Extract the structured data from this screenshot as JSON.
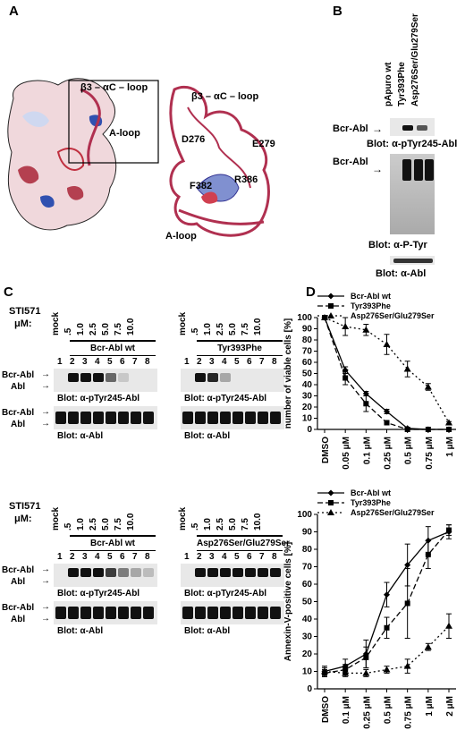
{
  "panelA": {
    "label": "A",
    "box_label": "β3 – αC – loop",
    "aloop_label": "A-loop",
    "right_loop_label": "β3 – αC – loop",
    "residues": [
      "D276",
      "E279",
      "F382",
      "R386"
    ],
    "right_aloop": "A-loop"
  },
  "panelB": {
    "label": "B",
    "lanes": [
      "pApuro wt",
      "Tyr393Phe",
      "Asp276Ser/Glu279Ser"
    ],
    "blots": [
      {
        "band": "Bcr-Abl",
        "caption": "Blot: α-pTyr245-Abl"
      },
      {
        "band": "Bcr-Abl",
        "caption": "Blot: α-P-Tyr"
      },
      {
        "band": "",
        "caption": "Blot: α-Abl"
      }
    ]
  },
  "panelC": {
    "label": "C",
    "treatment": "STI571",
    "unit": "μM:",
    "doses": [
      "mock",
      ".5",
      "1.0",
      "2.5",
      "5.0",
      "7.5",
      "10.0"
    ],
    "lane_numbers": [
      "1",
      "2",
      "3",
      "4",
      "5",
      "6",
      "7",
      "8"
    ],
    "groups": [
      {
        "title": "Bcr-Abl wt",
        "captions": [
          "Blot: α-pTyr245-Abl",
          "Blot: α-Abl"
        ]
      },
      {
        "title": "Tyr393Phe",
        "captions": [
          "Blot: α-pTyr245-Abl",
          "Blot: α-Abl"
        ]
      },
      {
        "title": "Bcr-Abl wt",
        "captions": [
          "Blot: α-pTyr245-Abl",
          "Blot: α-Abl"
        ]
      },
      {
        "title": "Asp276Ser/Glu279Ser",
        "captions": [
          "Blot: α-pTyr245-Abl",
          "Blot: α-Abl"
        ]
      }
    ],
    "band_labels": [
      "Bcr-Abl",
      "Abl"
    ]
  },
  "panelD": {
    "label": "D"
  },
  "chart_data": [
    {
      "type": "line",
      "categories": [
        "DMSO",
        "0.05 μM",
        "0.1 μM",
        "0.25 μM",
        "0.5 μM",
        "0.75 μM",
        "1 μM"
      ],
      "ylabel": "number of viable cells [%]",
      "ylim": [
        0,
        100
      ],
      "yticks": [
        0,
        10,
        20,
        30,
        40,
        50,
        60,
        70,
        80,
        90,
        100
      ],
      "legend": "top",
      "series": [
        {
          "name": "Bcr-Abl wt",
          "marker": "diamond",
          "dash": "",
          "values": [
            100,
            53,
            32,
            16,
            1,
            0,
            0
          ],
          "err": [
            0,
            3,
            2,
            2,
            1,
            0,
            0
          ]
        },
        {
          "name": "Tyr393Phe",
          "marker": "square",
          "dash": "6,3",
          "values": [
            100,
            46,
            23,
            6,
            0,
            0,
            0
          ],
          "err": [
            0,
            6,
            7,
            2,
            0,
            0,
            0
          ]
        },
        {
          "name": "Asp276Ser/Glu279Ser",
          "marker": "triangle",
          "dash": "2,3",
          "values": [
            100,
            92,
            89,
            76,
            54,
            38,
            6
          ],
          "err": [
            0,
            8,
            5,
            9,
            7,
            3,
            1
          ]
        }
      ]
    },
    {
      "type": "line",
      "categories": [
        "DMSO",
        "0.1 μM",
        "0.25 μM",
        "0.5 μM",
        "0.75 μM",
        "1 μM",
        "2 μM"
      ],
      "ylabel": "Annexin-V-positive cells [%]",
      "ylim": [
        0,
        100
      ],
      "yticks": [
        0,
        10,
        20,
        30,
        40,
        50,
        60,
        70,
        80,
        90,
        100
      ],
      "legend": "top",
      "series": [
        {
          "name": "Bcr-Abl wt",
          "marker": "diamond",
          "dash": "",
          "values": [
            10,
            13,
            20,
            54,
            71,
            85,
            90
          ],
          "err": [
            3,
            4,
            8,
            7,
            12,
            8,
            4
          ]
        },
        {
          "name": "Tyr393Phe",
          "marker": "square",
          "dash": "6,3",
          "values": [
            9,
            11,
            18,
            35,
            49,
            77,
            91
          ],
          "err": [
            2,
            3,
            6,
            6,
            20,
            8,
            3
          ]
        },
        {
          "name": "Asp276Ser/Glu279Ser",
          "marker": "triangle",
          "dash": "2,3",
          "values": [
            10,
            9,
            9,
            11,
            13,
            24,
            36
          ],
          "err": [
            2,
            2,
            2,
            2,
            4,
            2,
            7
          ]
        }
      ]
    }
  ]
}
